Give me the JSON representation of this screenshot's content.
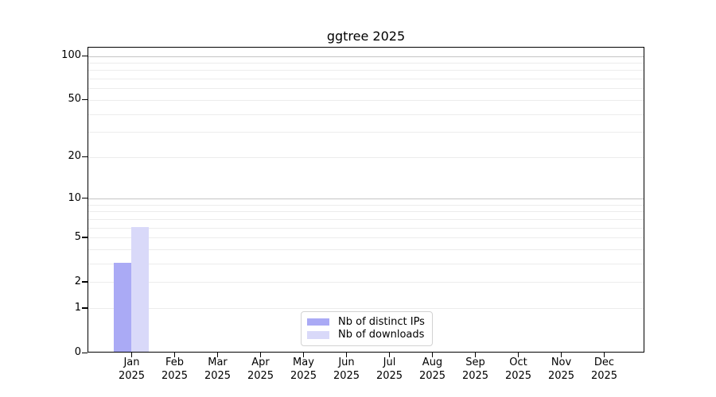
{
  "chart_data": {
    "type": "bar",
    "title": "ggtree 2025",
    "categories": [
      "Jan 2025",
      "Feb 2025",
      "Mar 2025",
      "Apr 2025",
      "May 2025",
      "Jun 2025",
      "Jul 2025",
      "Aug 2025",
      "Sep 2025",
      "Oct 2025",
      "Nov 2025",
      "Dec 2025"
    ],
    "series": [
      {
        "name": "Nb of distinct IPs",
        "color": "#aaaaf5",
        "values": [
          3,
          0,
          0,
          0,
          0,
          0,
          0,
          0,
          0,
          0,
          0,
          0
        ]
      },
      {
        "name": "Nb of downloads",
        "color": "#d9d9f9",
        "values": [
          6,
          0,
          0,
          0,
          0,
          0,
          0,
          0,
          0,
          0,
          0,
          0
        ]
      }
    ],
    "xlabel": "",
    "ylabel": "",
    "y_axis": {
      "scale": "log1p",
      "tick_values": [
        100,
        50,
        20,
        10,
        5,
        2,
        1,
        0
      ],
      "max_value": 100
    },
    "gridlines": {
      "minor_values": [
        1,
        2,
        3,
        4,
        5,
        6,
        7,
        8,
        9,
        20,
        30,
        40,
        50,
        60,
        70,
        80,
        90
      ],
      "major_values": [
        10,
        100
      ],
      "minor_color": "#ececec",
      "major_color": "#c4c4c4"
    },
    "legend_position": "lower center",
    "legend_labels": [
      "Nb of distinct IPs",
      "Nb of downloads"
    ]
  },
  "colors": {
    "distinct_ips": "#aaaaf5",
    "downloads": "#d9d9f9",
    "axis": "#000000",
    "background": "#ffffff"
  }
}
